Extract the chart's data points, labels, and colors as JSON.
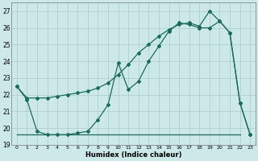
{
  "xlabel": "Humidex (Indice chaleur)",
  "bg_color": "#cce8e8",
  "grid_color": "#aacccc",
  "line_color": "#1a6b5a",
  "xlim": [
    -0.5,
    23.5
  ],
  "ylim": [
    19.0,
    27.5
  ],
  "yticks": [
    19,
    20,
    21,
    22,
    23,
    24,
    25,
    26,
    27
  ],
  "xticks": [
    0,
    1,
    2,
    3,
    4,
    5,
    6,
    7,
    8,
    9,
    10,
    11,
    12,
    13,
    14,
    15,
    16,
    17,
    18,
    19,
    20,
    21,
    22,
    23
  ],
  "series1_x": [
    0,
    1,
    2,
    3,
    4,
    5,
    6,
    7,
    8,
    9,
    10,
    11,
    12,
    13,
    14,
    15,
    16,
    17,
    18,
    19,
    20,
    21,
    22,
    23
  ],
  "series1_y": [
    22.5,
    21.7,
    19.8,
    19.6,
    19.6,
    19.6,
    19.7,
    19.8,
    20.5,
    21.4,
    23.9,
    22.3,
    22.8,
    24.0,
    24.9,
    25.8,
    26.3,
    26.2,
    26.0,
    26.0,
    26.4,
    25.7,
    21.5,
    19.6
  ],
  "series2_x": [
    0,
    1,
    2,
    3,
    4,
    5,
    6,
    7,
    8,
    9,
    10,
    11,
    12,
    13,
    14,
    15,
    16,
    17,
    18,
    19,
    20,
    21,
    22,
    23
  ],
  "series2_y": [
    22.5,
    21.8,
    21.8,
    21.8,
    21.9,
    22.0,
    22.1,
    22.2,
    22.4,
    22.7,
    23.2,
    23.8,
    24.5,
    25.0,
    25.5,
    25.9,
    26.2,
    26.3,
    26.1,
    27.0,
    26.4,
    25.7,
    21.5,
    19.6
  ],
  "series3_x": [
    0,
    22
  ],
  "series3_y": [
    19.6,
    19.6
  ],
  "marker_size": 2.0,
  "line_width": 0.9
}
